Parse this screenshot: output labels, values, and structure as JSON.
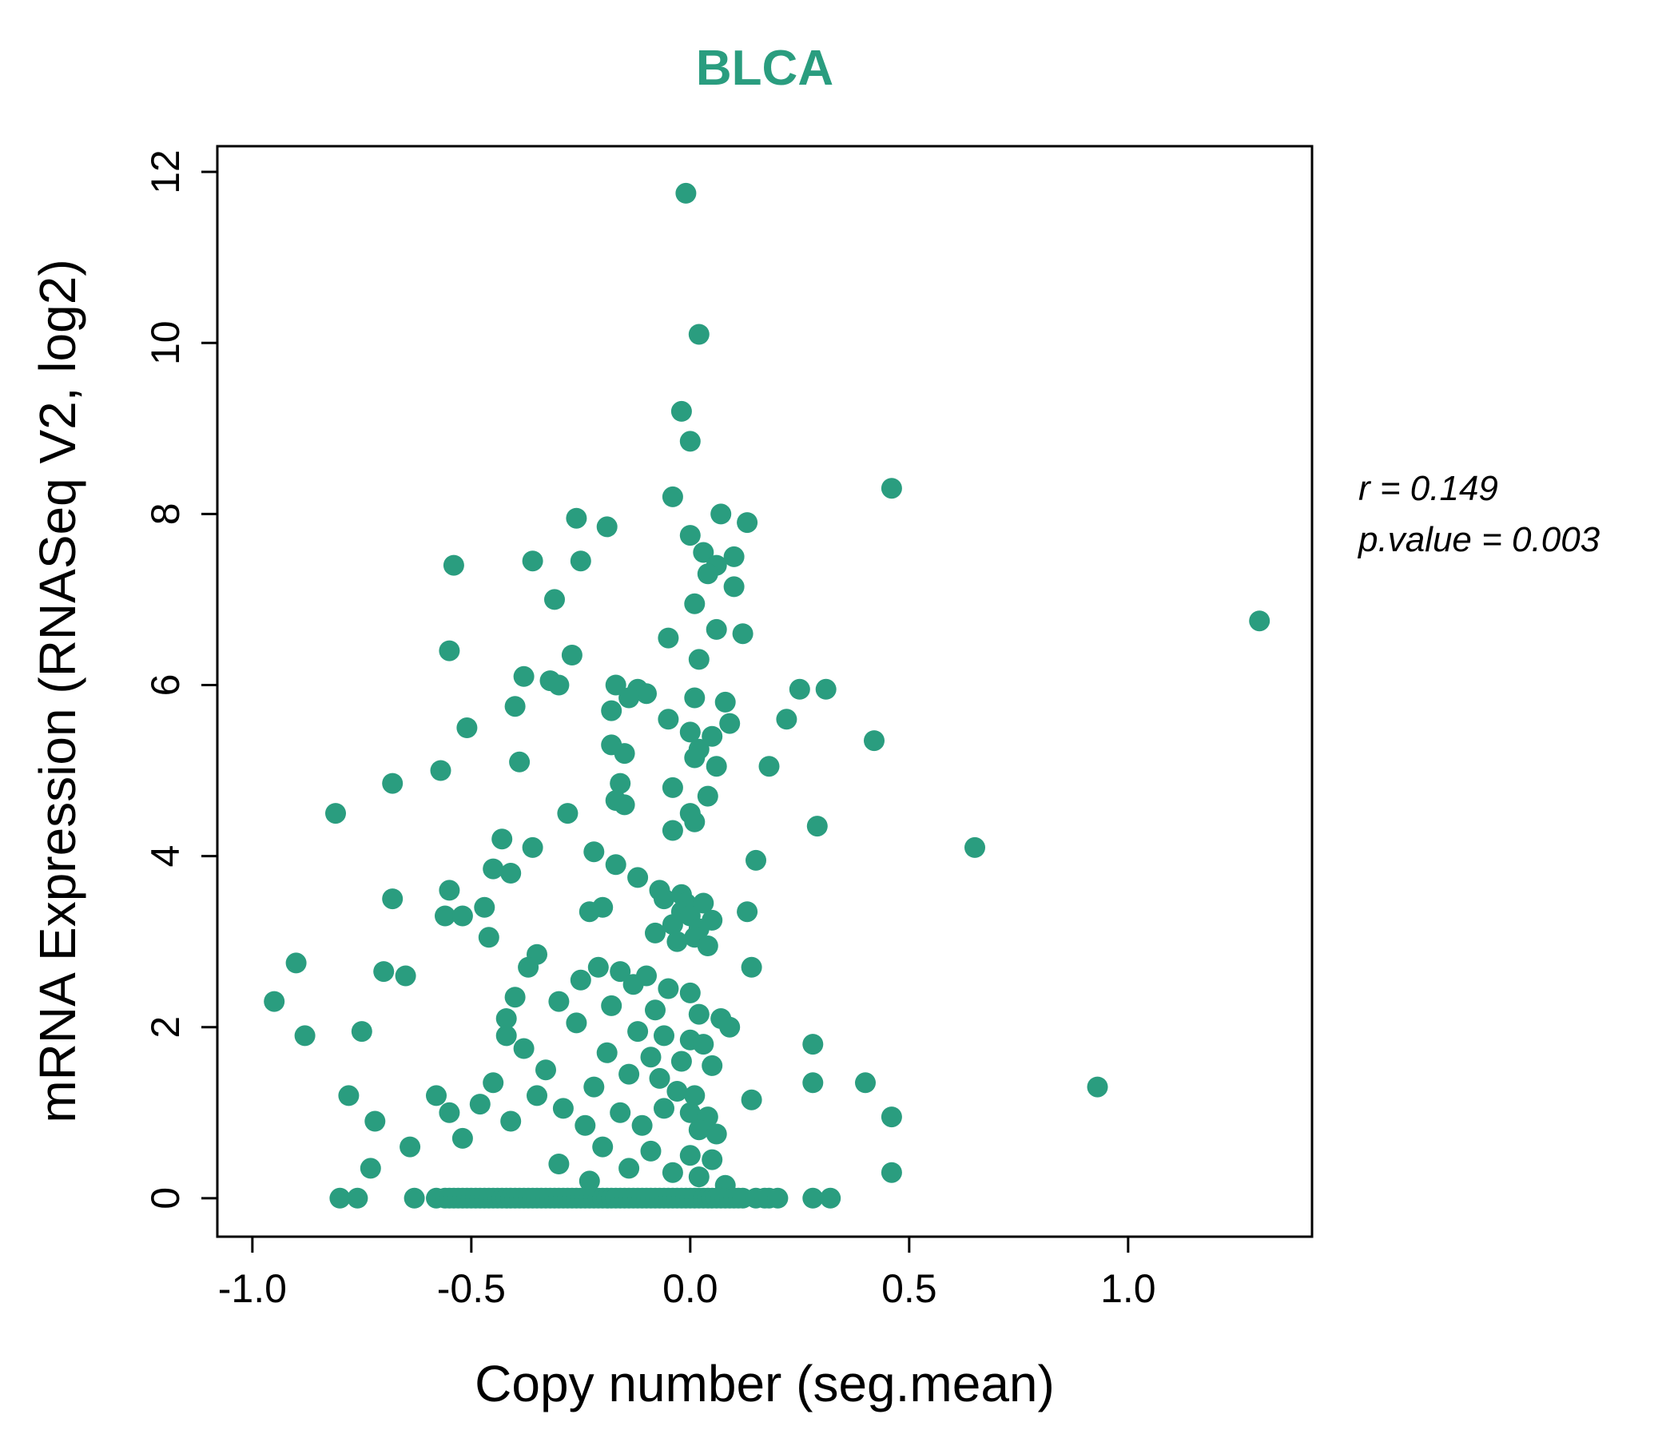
{
  "title": "BLCA",
  "stats": {
    "line1": "r = 0.149",
    "line2": "p.value = 0.003"
  },
  "chart_data": {
    "type": "scatter",
    "title": "BLCA",
    "xlabel": "Copy number (seg.mean)",
    "ylabel": "mRNA Expression (RNASeq V2, log2)",
    "xlim": [
      -1.08,
      1.42
    ],
    "ylim": [
      -0.45,
      12.3
    ],
    "x_ticks": [
      -1.0,
      -0.5,
      0.0,
      0.5,
      1.0
    ],
    "x_tick_labels": [
      "-1.0",
      "-0.5",
      "0.0",
      "0.5",
      "1.0"
    ],
    "y_ticks": [
      0,
      2,
      4,
      6,
      8,
      10,
      12
    ],
    "y_tick_labels": [
      "0",
      "2",
      "4",
      "6",
      "8",
      "10",
      "12"
    ],
    "grid": false,
    "legend": "none",
    "point_color": "#2a9d7f",
    "title_color": "#2a9d7f",
    "correlation_r": 0.149,
    "p_value": 0.003,
    "annotations": [
      "r = 0.149",
      "p.value = 0.003"
    ],
    "points": [
      [
        -0.01,
        11.75
      ],
      [
        0.02,
        10.1
      ],
      [
        -0.02,
        9.2
      ],
      [
        0.0,
        8.85
      ],
      [
        0.46,
        8.3
      ],
      [
        -0.04,
        8.2
      ],
      [
        0.07,
        8.0
      ],
      [
        -0.26,
        7.95
      ],
      [
        0.13,
        7.9
      ],
      [
        -0.19,
        7.85
      ],
      [
        0.0,
        7.75
      ],
      [
        0.03,
        7.55
      ],
      [
        0.1,
        7.5
      ],
      [
        -0.54,
        7.4
      ],
      [
        -0.36,
        7.45
      ],
      [
        -0.25,
        7.45
      ],
      [
        0.06,
        7.4
      ],
      [
        0.04,
        7.3
      ],
      [
        0.1,
        7.15
      ],
      [
        -0.31,
        7.0
      ],
      [
        0.01,
        6.95
      ],
      [
        1.3,
        6.75
      ],
      [
        0.06,
        6.65
      ],
      [
        0.12,
        6.6
      ],
      [
        -0.05,
        6.55
      ],
      [
        -0.55,
        6.4
      ],
      [
        -0.27,
        6.35
      ],
      [
        0.02,
        6.3
      ],
      [
        -0.38,
        6.1
      ],
      [
        -0.32,
        6.05
      ],
      [
        -0.3,
        6.0
      ],
      [
        -0.17,
        6.0
      ],
      [
        -0.12,
        5.95
      ],
      [
        0.25,
        5.95
      ],
      [
        0.31,
        5.95
      ],
      [
        -0.1,
        5.9
      ],
      [
        -0.14,
        5.85
      ],
      [
        0.01,
        5.85
      ],
      [
        0.08,
        5.8
      ],
      [
        -0.4,
        5.75
      ],
      [
        -0.18,
        5.7
      ],
      [
        -0.05,
        5.6
      ],
      [
        0.09,
        5.55
      ],
      [
        0.22,
        5.6
      ],
      [
        -0.51,
        5.5
      ],
      [
        0.0,
        5.45
      ],
      [
        0.05,
        5.4
      ],
      [
        0.42,
        5.35
      ],
      [
        -0.18,
        5.3
      ],
      [
        0.02,
        5.25
      ],
      [
        -0.15,
        5.2
      ],
      [
        0.01,
        5.15
      ],
      [
        -0.39,
        5.1
      ],
      [
        0.06,
        5.05
      ],
      [
        0.18,
        5.05
      ],
      [
        -0.57,
        5.0
      ],
      [
        -0.68,
        4.85
      ],
      [
        -0.16,
        4.85
      ],
      [
        -0.04,
        4.8
      ],
      [
        0.04,
        4.7
      ],
      [
        -0.17,
        4.65
      ],
      [
        -0.15,
        4.6
      ],
      [
        -0.28,
        4.5
      ],
      [
        -0.81,
        4.5
      ],
      [
        0.0,
        4.5
      ],
      [
        0.01,
        4.4
      ],
      [
        0.29,
        4.35
      ],
      [
        -0.04,
        4.3
      ],
      [
        -0.43,
        4.2
      ],
      [
        -0.36,
        4.1
      ],
      [
        0.65,
        4.1
      ],
      [
        -0.22,
        4.05
      ],
      [
        0.15,
        3.95
      ],
      [
        -0.17,
        3.9
      ],
      [
        -0.45,
        3.85
      ],
      [
        -0.41,
        3.8
      ],
      [
        -0.12,
        3.75
      ],
      [
        -0.55,
        3.6
      ],
      [
        -0.07,
        3.6
      ],
      [
        -0.02,
        3.55
      ],
      [
        -0.06,
        3.5
      ],
      [
        -0.68,
        3.5
      ],
      [
        -0.01,
        3.45
      ],
      [
        0.03,
        3.45
      ],
      [
        -0.47,
        3.4
      ],
      [
        -0.2,
        3.4
      ],
      [
        -0.23,
        3.35
      ],
      [
        0.13,
        3.35
      ],
      [
        -0.02,
        3.35
      ],
      [
        -0.56,
        3.3
      ],
      [
        -0.52,
        3.3
      ],
      [
        0.0,
        3.3
      ],
      [
        0.05,
        3.25
      ],
      [
        -0.04,
        3.2
      ],
      [
        0.02,
        3.15
      ],
      [
        -0.08,
        3.1
      ],
      [
        0.01,
        3.05
      ],
      [
        -0.46,
        3.05
      ],
      [
        -0.03,
        3.0
      ],
      [
        0.04,
        2.95
      ],
      [
        -0.35,
        2.85
      ],
      [
        -0.9,
        2.75
      ],
      [
        -0.7,
        2.65
      ],
      [
        -0.65,
        2.6
      ],
      [
        -0.37,
        2.7
      ],
      [
        -0.21,
        2.7
      ],
      [
        -0.16,
        2.65
      ],
      [
        -0.1,
        2.6
      ],
      [
        0.14,
        2.7
      ],
      [
        -0.25,
        2.55
      ],
      [
        -0.13,
        2.5
      ],
      [
        -0.05,
        2.45
      ],
      [
        0.0,
        2.4
      ],
      [
        -0.95,
        2.3
      ],
      [
        -0.4,
        2.35
      ],
      [
        -0.3,
        2.3
      ],
      [
        -0.18,
        2.25
      ],
      [
        -0.08,
        2.2
      ],
      [
        0.02,
        2.15
      ],
      [
        -0.42,
        2.1
      ],
      [
        -0.26,
        2.05
      ],
      [
        0.07,
        2.1
      ],
      [
        0.09,
        2.0
      ],
      [
        -0.75,
        1.95
      ],
      [
        -0.88,
        1.9
      ],
      [
        -0.42,
        1.9
      ],
      [
        -0.12,
        1.95
      ],
      [
        -0.06,
        1.9
      ],
      [
        0.0,
        1.85
      ],
      [
        0.03,
        1.8
      ],
      [
        0.28,
        1.8
      ],
      [
        -0.38,
        1.75
      ],
      [
        -0.19,
        1.7
      ],
      [
        -0.09,
        1.65
      ],
      [
        -0.02,
        1.6
      ],
      [
        0.05,
        1.55
      ],
      [
        -0.33,
        1.5
      ],
      [
        -0.14,
        1.45
      ],
      [
        -0.07,
        1.4
      ],
      [
        -0.45,
        1.35
      ],
      [
        -0.22,
        1.3
      ],
      [
        0.93,
        1.3
      ],
      [
        0.28,
        1.35
      ],
      [
        0.4,
        1.35
      ],
      [
        -0.78,
        1.2
      ],
      [
        -0.58,
        1.2
      ],
      [
        -0.35,
        1.2
      ],
      [
        -0.03,
        1.25
      ],
      [
        0.01,
        1.2
      ],
      [
        0.14,
        1.15
      ],
      [
        -0.48,
        1.1
      ],
      [
        -0.29,
        1.05
      ],
      [
        -0.55,
        1.0
      ],
      [
        -0.16,
        1.0
      ],
      [
        -0.06,
        1.05
      ],
      [
        0.0,
        1.0
      ],
      [
        0.04,
        0.95
      ],
      [
        0.46,
        0.95
      ],
      [
        -0.72,
        0.9
      ],
      [
        -0.41,
        0.9
      ],
      [
        -0.24,
        0.85
      ],
      [
        -0.11,
        0.85
      ],
      [
        0.02,
        0.8
      ],
      [
        0.06,
        0.75
      ],
      [
        -0.52,
        0.7
      ],
      [
        -0.64,
        0.6
      ],
      [
        -0.2,
        0.6
      ],
      [
        -0.09,
        0.55
      ],
      [
        0.0,
        0.5
      ],
      [
        0.05,
        0.45
      ],
      [
        -0.3,
        0.4
      ],
      [
        -0.73,
        0.35
      ],
      [
        -0.14,
        0.35
      ],
      [
        -0.04,
        0.3
      ],
      [
        0.46,
        0.3
      ],
      [
        0.02,
        0.25
      ],
      [
        -0.23,
        0.2
      ],
      [
        0.08,
        0.15
      ],
      [
        -0.8,
        0
      ],
      [
        -0.76,
        0
      ],
      [
        -0.63,
        0
      ],
      [
        -0.58,
        0
      ],
      [
        -0.56,
        0
      ],
      [
        -0.55,
        0
      ],
      [
        -0.54,
        0
      ],
      [
        -0.53,
        0
      ],
      [
        -0.52,
        0
      ],
      [
        -0.51,
        0
      ],
      [
        -0.5,
        0
      ],
      [
        -0.49,
        0
      ],
      [
        -0.48,
        0
      ],
      [
        -0.47,
        0
      ],
      [
        -0.46,
        0
      ],
      [
        -0.45,
        0
      ],
      [
        -0.44,
        0
      ],
      [
        -0.43,
        0
      ],
      [
        -0.42,
        0
      ],
      [
        -0.41,
        0
      ],
      [
        -0.4,
        0
      ],
      [
        -0.39,
        0
      ],
      [
        -0.38,
        0
      ],
      [
        -0.37,
        0
      ],
      [
        -0.36,
        0
      ],
      [
        -0.35,
        0
      ],
      [
        -0.34,
        0
      ],
      [
        -0.33,
        0
      ],
      [
        -0.32,
        0
      ],
      [
        -0.31,
        0
      ],
      [
        -0.3,
        0
      ],
      [
        -0.29,
        0
      ],
      [
        -0.28,
        0
      ],
      [
        -0.27,
        0
      ],
      [
        -0.26,
        0
      ],
      [
        -0.25,
        0
      ],
      [
        -0.24,
        0
      ],
      [
        -0.23,
        0
      ],
      [
        -0.22,
        0
      ],
      [
        -0.21,
        0
      ],
      [
        -0.2,
        0
      ],
      [
        -0.19,
        0
      ],
      [
        -0.18,
        0
      ],
      [
        -0.17,
        0
      ],
      [
        -0.16,
        0
      ],
      [
        -0.15,
        0
      ],
      [
        -0.14,
        0
      ],
      [
        -0.13,
        0
      ],
      [
        -0.12,
        0
      ],
      [
        -0.11,
        0
      ],
      [
        -0.1,
        0
      ],
      [
        -0.09,
        0
      ],
      [
        -0.08,
        0
      ],
      [
        -0.07,
        0
      ],
      [
        -0.06,
        0
      ],
      [
        -0.05,
        0
      ],
      [
        -0.04,
        0
      ],
      [
        -0.03,
        0
      ],
      [
        -0.02,
        0
      ],
      [
        -0.01,
        0
      ],
      [
        0.0,
        0
      ],
      [
        0.01,
        0
      ],
      [
        0.02,
        0
      ],
      [
        0.03,
        0
      ],
      [
        0.04,
        0
      ],
      [
        0.05,
        0
      ],
      [
        0.06,
        0
      ],
      [
        0.07,
        0
      ],
      [
        0.08,
        0
      ],
      [
        0.09,
        0
      ],
      [
        0.1,
        0
      ],
      [
        0.11,
        0
      ],
      [
        0.12,
        0
      ],
      [
        0.15,
        0
      ],
      [
        0.17,
        0
      ],
      [
        0.18,
        0
      ],
      [
        0.2,
        0
      ],
      [
        0.28,
        0
      ],
      [
        0.32,
        0
      ]
    ]
  }
}
